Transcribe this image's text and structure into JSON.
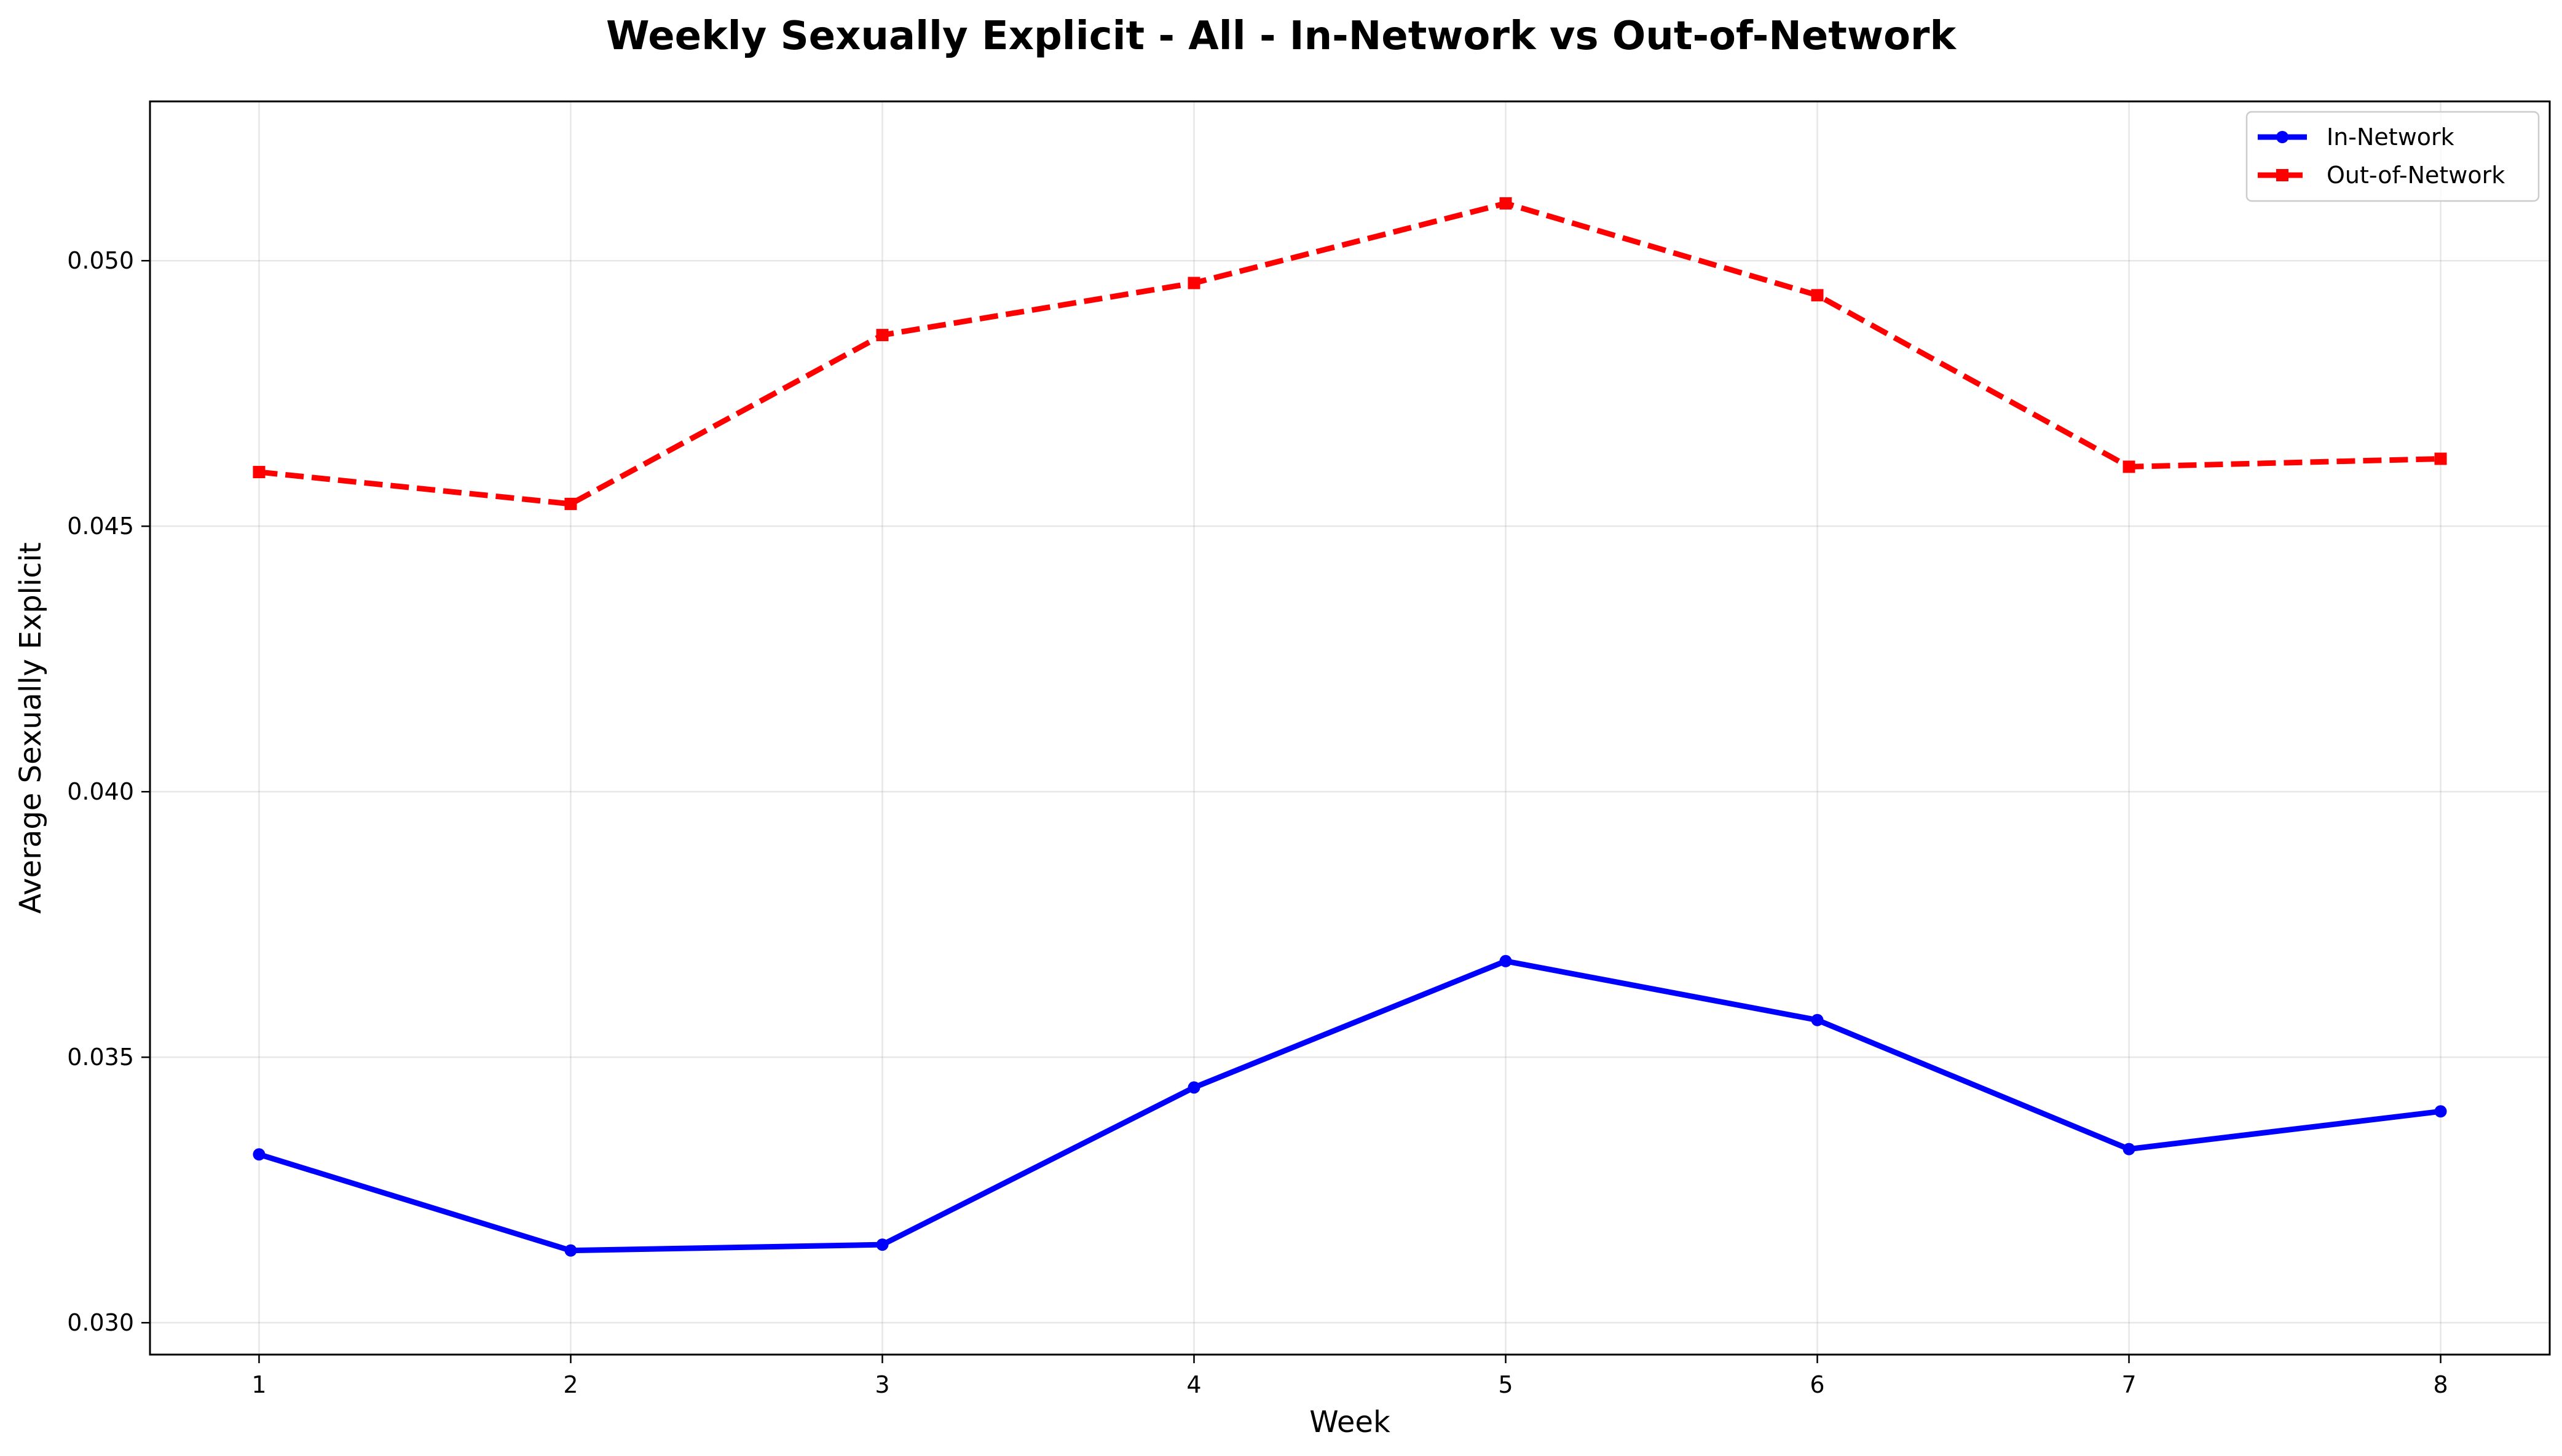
{
  "chart_data": {
    "type": "line",
    "title": "Weekly Sexually Explicit - All - In-Network vs Out-of-Network",
    "xlabel": "Week",
    "ylabel": "Average Sexually Explicit",
    "x": [
      1,
      2,
      3,
      4,
      5,
      6,
      7,
      8
    ],
    "xlim": [
      0.65,
      8.35
    ],
    "ylim": [
      0.0294,
      0.053
    ],
    "xticks": [
      "1",
      "2",
      "3",
      "4",
      "5",
      "6",
      "7",
      "8"
    ],
    "yticks": [
      "0.030",
      "0.035",
      "0.040",
      "0.045",
      "0.050"
    ],
    "grid": true,
    "legend_position": "top-right",
    "series": [
      {
        "name": "In-Network",
        "color": "#0000ff",
        "line_style": "solid",
        "marker": "circle",
        "values": [
          0.03317,
          0.03136,
          0.03147,
          0.03443,
          0.03681,
          0.0357,
          0.03327,
          0.03398
        ]
      },
      {
        "name": "Out-of-Network",
        "color": "#ff0000",
        "line_style": "dashed",
        "marker": "square",
        "values": [
          0.04602,
          0.04542,
          0.0486,
          0.04958,
          0.05108,
          0.04935,
          0.04612,
          0.04627
        ]
      }
    ]
  }
}
